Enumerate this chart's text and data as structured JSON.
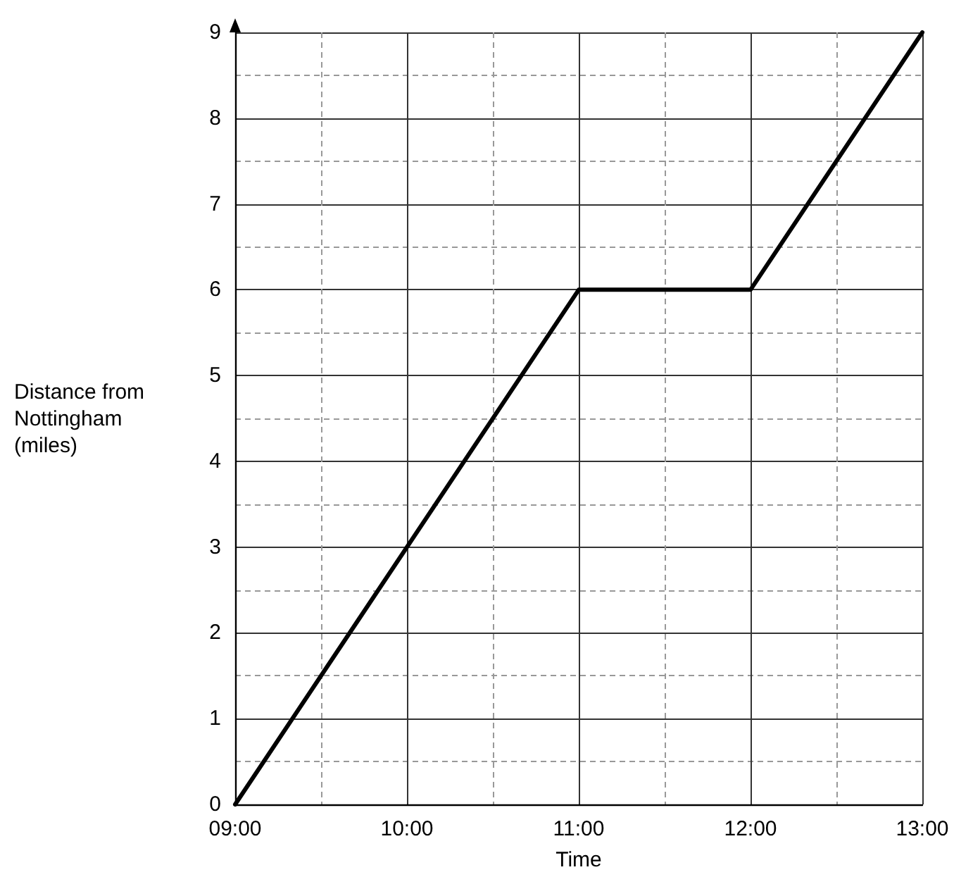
{
  "chart_data": {
    "type": "line",
    "xlabel": "Time",
    "ylabel": "Distance from Nottingham (miles)",
    "x": [
      9,
      11,
      12,
      13
    ],
    "series": [
      {
        "color": "#000000",
        "values": [
          0,
          6,
          6,
          9
        ]
      }
    ],
    "xlim": [
      9,
      13
    ],
    "xticks": [
      {
        "value": 9,
        "label": "09:00"
      },
      {
        "value": 9.5,
        "label": null
      },
      {
        "value": 10,
        "label": "10:00"
      },
      {
        "value": 10.5,
        "label": null
      },
      {
        "value": 11,
        "label": "11:00"
      },
      {
        "value": 11.5,
        "label": null
      },
      {
        "value": 12,
        "label": "12:00"
      },
      {
        "value": 12.5,
        "label": null
      },
      {
        "value": 13,
        "label": "13:00"
      }
    ],
    "ylim": [
      0,
      9
    ],
    "yticks": [
      0,
      {
        "value": 0.5,
        "label": null
      },
      1,
      {
        "value": 1.5,
        "label": null
      },
      2,
      {
        "value": 2.5,
        "label": null
      },
      3,
      {
        "value": 3.5,
        "label": null
      },
      4,
      {
        "value": 4.5,
        "label": null
      },
      5,
      {
        "value": 5.5,
        "label": null
      },
      6,
      {
        "value": 6.5,
        "label": null
      },
      7,
      {
        "value": 7.5,
        "label": null
      },
      8,
      {
        "value": 8.5,
        "label": null
      },
      9
    ],
    "grid": true,
    "marker": "none",
    "line_style": "solid"
  }
}
